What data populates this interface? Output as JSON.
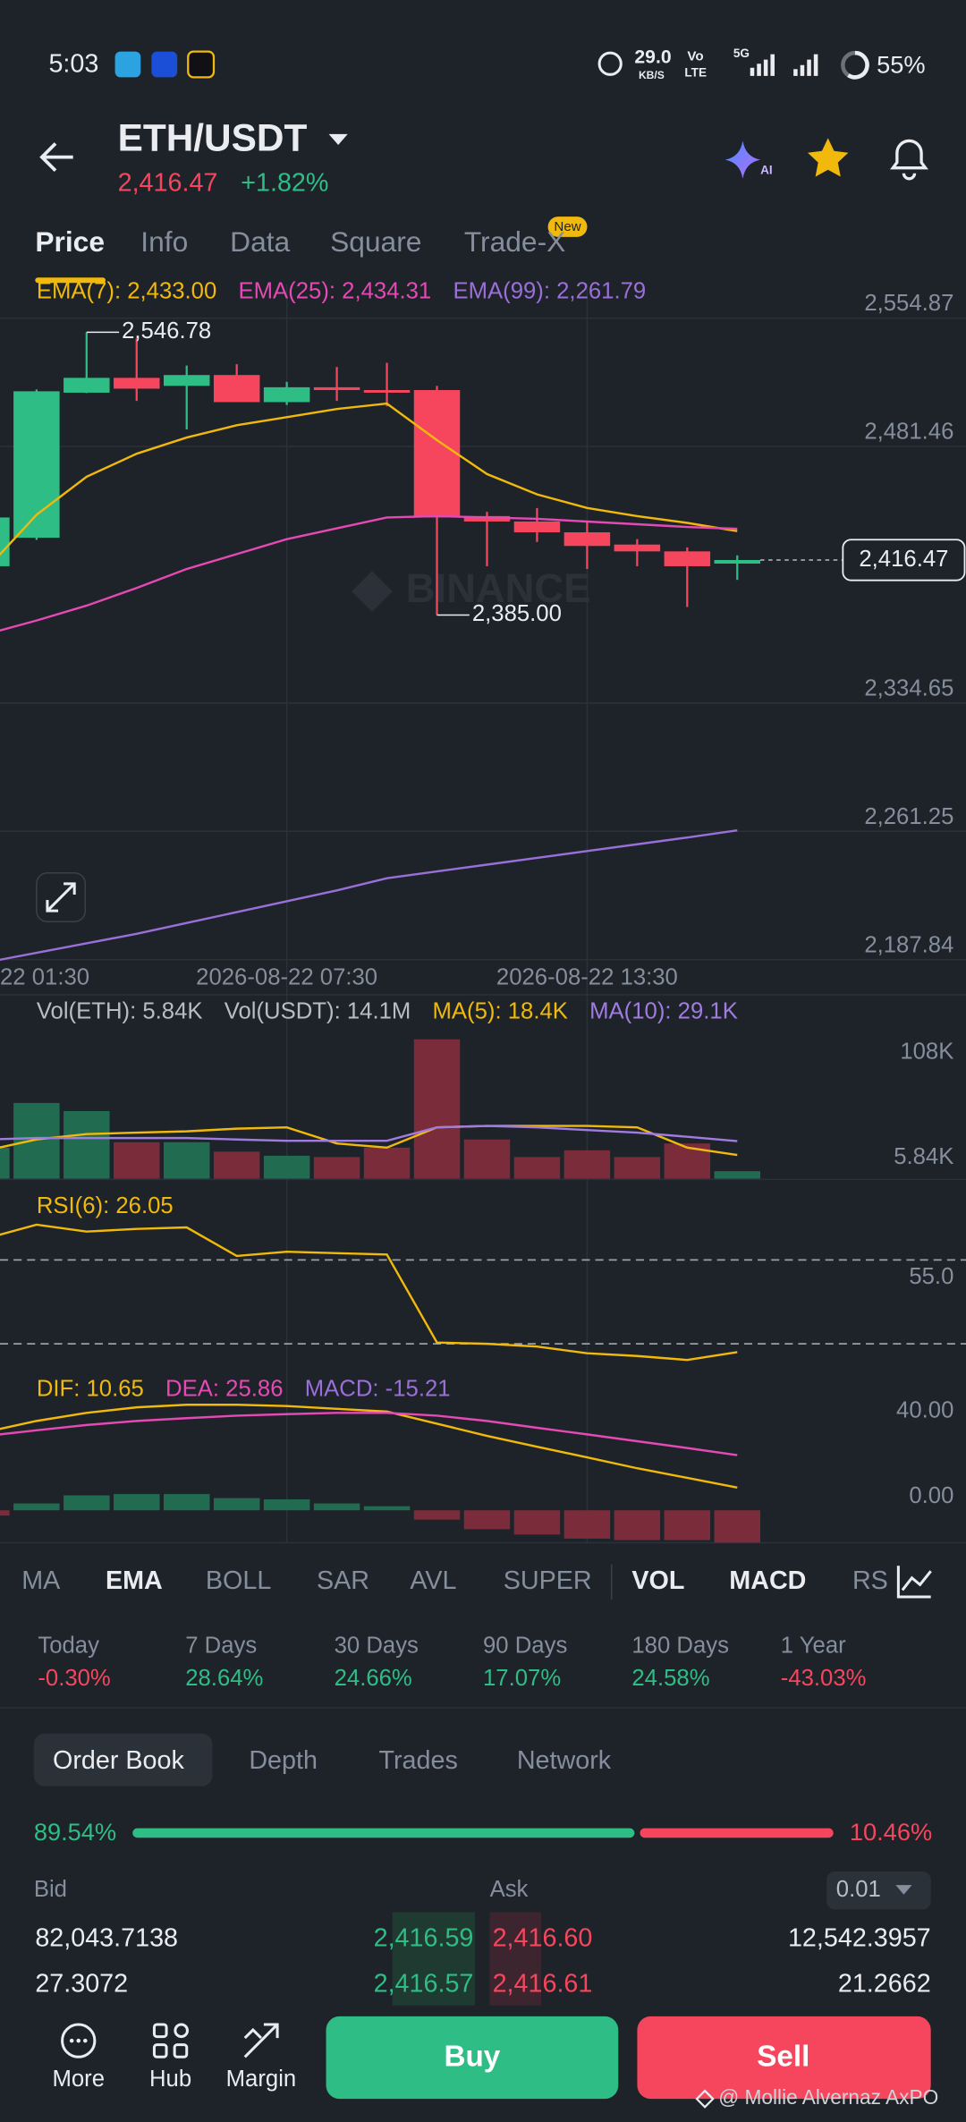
{
  "status_bar": {
    "time": "5:03",
    "net_speed": "29.0",
    "net_unit": "KB/S",
    "vo": "Vo",
    "lte": "LTE",
    "network": "5G",
    "battery": "55%"
  },
  "header": {
    "pair": "ETH/USDT",
    "price": "2,416.47",
    "change": "+1.82%",
    "ai_badge": "AI"
  },
  "tabs": {
    "items": [
      "Price",
      "Info",
      "Data",
      "Square",
      "Trade-X"
    ],
    "badge": "New"
  },
  "chart_data": [
    {
      "type": "candlestick",
      "watermark": "BINANCE",
      "up_color": "#2ebd85",
      "down_color": "#f6465d",
      "grid": true,
      "xlim": [
        0.27,
        19.57
      ],
      "ylim": [
        2187.1,
        2574.23
      ],
      "yticks": [
        {
          "value": 2554.87,
          "label": "2,554.87"
        },
        {
          "value": 2481.46,
          "label": "2,481.46"
        },
        {
          "value": 2334.65,
          "label": "2,334.65"
        },
        {
          "value": 2261.25,
          "label": "2,261.25"
        },
        {
          "value": 2187.84,
          "label": "2,187.84"
        }
      ],
      "xticks": [
        {
          "value": 0,
          "label": "22 01:30"
        },
        {
          "value": 6,
          "label": "2026-08-22 07:30"
        },
        {
          "value": 12,
          "label": "2026-08-22 13:30"
        }
      ],
      "open": [
        2412.9,
        2429.2,
        2512.2,
        2520.7,
        2516.1,
        2522.3,
        2506.8,
        2515.3,
        2513.7,
        2513.7,
        2441.6,
        2438.5,
        2432.3,
        2425.3,
        2421.4,
        2414.4
      ],
      "high": [
        2442.4,
        2514.0,
        2546.78,
        2543.2,
        2527.7,
        2528.5,
        2518.4,
        2526.9,
        2529.3,
        2516.1,
        2444.0,
        2446.2,
        2438.5,
        2428.4,
        2423.7,
        2419.1
      ],
      "low": [
        2410.5,
        2428.0,
        2512.0,
        2507.5,
        2491.2,
        2506.8,
        2505.2,
        2507.5,
        2504.4,
        2385.0,
        2412.9,
        2426.8,
        2411.3,
        2412.9,
        2389.6,
        2405.1
      ],
      "close": [
        2440.8,
        2513.0,
        2520.7,
        2514.5,
        2522.3,
        2506.8,
        2515.3,
        2513.7,
        2512.2,
        2440.8,
        2438.5,
        2432.3,
        2424.5,
        2421.4,
        2412.9,
        2416.47
      ],
      "series": [
        {
          "name": "EMA(7): 2,433.00",
          "color": "#f0b90b",
          "values": [
            2411.32,
            2442.35,
            2464.08,
            2477.27,
            2486.56,
            2493.57,
            2498.22,
            2502.88,
            2505.98,
            2485.03,
            2465.63,
            2454.0,
            2446.23,
            2441.58,
            2437.7,
            2433.0
          ]
        },
        {
          "name": "EMA(25): 2,434.31",
          "color": "#e449b4",
          "values": [
            2374.07,
            2381.83,
            2390.37,
            2400.45,
            2411.32,
            2419.85,
            2428.39,
            2434.6,
            2440.8,
            2441.58,
            2440.8,
            2440.03,
            2438.47,
            2436.92,
            2435.37,
            2434.31
          ]
        },
        {
          "name": "EMA(99): 2,261.79",
          "color": "#9a6fd8",
          "values": [
            2186.27,
            2191.71,
            2197.15,
            2202.58,
            2208.79,
            2214.99,
            2221.2,
            2227.41,
            2234.39,
            2238.28,
            2242.16,
            2246.04,
            2249.92,
            2253.8,
            2257.68,
            2261.79
          ]
        }
      ],
      "annotations": [
        {
          "label": "2,546.78",
          "index": 2,
          "field": "high"
        },
        {
          "label": "2,385.00",
          "index": 9,
          "field": "low"
        }
      ],
      "last_price": {
        "value": 2416.47,
        "label": "2,416.47"
      }
    },
    {
      "type": "bar",
      "titles": [
        "Vol(ETH): 5.84K",
        "Vol(USDT): 14.1M"
      ],
      "xlim": [
        0.27,
        19.57
      ],
      "ylim": [
        0,
        121600
      ],
      "yticks": [
        {
          "value": 108000,
          "label": "108K"
        },
        {
          "value": 5840,
          "label": "5.84K"
        }
      ],
      "values": [
        24100,
        58700,
        52400,
        28300,
        28300,
        21000,
        17800,
        16800,
        24100,
        108000,
        30400,
        16800,
        22000,
        16800,
        27300,
        5840
      ],
      "colors": [
        "#216b51",
        "#216b51",
        "#216b51",
        "#7a2c3b",
        "#216b51",
        "#7a2c3b",
        "#216b51",
        "#7a2c3b",
        "#7a2c3b",
        "#7a2c3b",
        "#7a2c3b",
        "#7a2c3b",
        "#7a2c3b",
        "#7a2c3b",
        "#7a2c3b",
        "#216b51"
      ],
      "series": [
        {
          "name": "MA(5): 18.4K",
          "color": "#f0b90b",
          "values": [
            22000,
            30400,
            34600,
            35700,
            36700,
            38800,
            39800,
            27300,
            24100,
            39800,
            40900,
            40900,
            40900,
            39800,
            24100,
            18400
          ]
        },
        {
          "name": "MA(10): 29.1K",
          "color": "#a07be0",
          "values": [
            30400,
            31500,
            31500,
            31500,
            31500,
            30400,
            29400,
            29400,
            29400,
            39800,
            40900,
            39800,
            37700,
            35700,
            32500,
            29100
          ]
        }
      ]
    },
    {
      "type": "line",
      "xlim": [
        0.27,
        19.57
      ],
      "ylim": [
        20.32,
        99.68
      ],
      "yticks": [
        {
          "value": 55,
          "label": "55.0"
        }
      ],
      "ref_lines": [
        70,
        30
      ],
      "series": [
        {
          "name": "RSI(6): 26.05",
          "color": "#f0b90b",
          "values": [
            80.3,
            86.8,
            83.5,
            84.8,
            85.5,
            71.9,
            73.9,
            73.2,
            72.6,
            30.6,
            30.0,
            28.7,
            25.5,
            24.2,
            22.3,
            26.05
          ]
        }
      ]
    },
    {
      "type": "macd",
      "xlim": [
        0.27,
        19.57
      ],
      "ylim": [
        -16,
        67.3
      ],
      "yticks": [
        {
          "value": 40,
          "label": "40.00"
        },
        {
          "value": 0,
          "label": "0.00"
        }
      ],
      "series": [
        {
          "name": "DIF: 10.65",
          "color": "#f0b90b",
          "values": [
            36.8,
            41.9,
            45.7,
            48.3,
            49.5,
            49.5,
            48.9,
            47.6,
            46.3,
            40.6,
            34.9,
            29.8,
            24.8,
            19.7,
            15.2,
            10.65
          ]
        },
        {
          "name": "DEA: 25.86",
          "color": "#e449b4",
          "values": [
            34.9,
            37.5,
            40.0,
            41.9,
            43.2,
            44.4,
            45.1,
            45.7,
            45.7,
            44.4,
            41.9,
            38.7,
            35.6,
            32.4,
            29.2,
            25.86
          ]
        }
      ],
      "histogram": {
        "name": "MACD: -15.21",
        "name_color": "#9a6fd8",
        "up_color": "#216b51",
        "down_color": "#7a2c3b",
        "values": [
          -2.5,
          3.2,
          7.0,
          7.6,
          7.6,
          5.7,
          5.1,
          3.2,
          1.9,
          -4.4,
          -8.9,
          -11.4,
          -13.3,
          -14.0,
          -14.0,
          -15.21
        ]
      }
    }
  ],
  "indicator_tabs": [
    "MA",
    "EMA",
    "BOLL",
    "SAR",
    "AVL",
    "SUPER",
    "VOL",
    "MACD",
    "RSI"
  ],
  "performance": [
    {
      "period": "Today",
      "change": "-0.30%"
    },
    {
      "period": "7 Days",
      "change": "28.64%"
    },
    {
      "period": "30 Days",
      "change": "24.66%"
    },
    {
      "period": "90 Days",
      "change": "17.07%"
    },
    {
      "period": "180 Days",
      "change": "24.58%"
    },
    {
      "period": "1 Year",
      "change": "-43.03%"
    }
  ],
  "order_book": {
    "tabs": [
      "Order Book",
      "Depth",
      "Trades",
      "Network"
    ],
    "bid_ratio": "89.54%",
    "ask_ratio": "10.46%",
    "bid_label": "Bid",
    "ask_label": "Ask",
    "precision": "0.01",
    "rows": [
      [
        "82,043.7138",
        "2,416.59",
        "2,416.60",
        "12,542.3957"
      ],
      [
        "27.3072",
        "2,416.57",
        "2,416.61",
        "21.2662"
      ]
    ]
  },
  "bottom_nav": {
    "items": [
      "More",
      "Hub",
      "Margin"
    ],
    "buy": "Buy",
    "sell": "Sell"
  },
  "watermark": "@ Mollie Alvernaz AxPO"
}
